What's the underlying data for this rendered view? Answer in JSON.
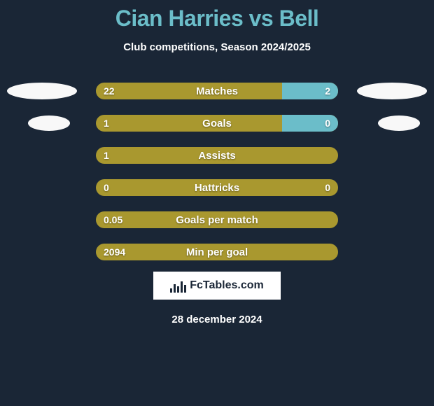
{
  "title": "Cian Harries vs Bell",
  "subtitle": "Club competitions, Season 2024/2025",
  "colors": {
    "background": "#1a2636",
    "title": "#6bbdc9",
    "bar_base": "#a9982f",
    "bar_accent": "#6bbdc9",
    "text": "#ffffff",
    "marker": "#f8f8f8",
    "brand_bg": "#ffffff",
    "brand_text": "#1a2636"
  },
  "rows": [
    {
      "label": "Matches",
      "left_value": "22",
      "right_value": "2",
      "right_color": "#6bbdc9",
      "right_width_pct": 23,
      "show_left_marker": true,
      "show_right_marker": true,
      "left_marker_small": false,
      "right_marker_small": false
    },
    {
      "label": "Goals",
      "left_value": "1",
      "right_value": "0",
      "right_color": "#6bbdc9",
      "right_width_pct": 23,
      "show_left_marker": true,
      "show_right_marker": true,
      "left_marker_small": true,
      "right_marker_small": true
    },
    {
      "label": "Assists",
      "left_value": "1",
      "right_value": "",
      "right_color": "#a9982f",
      "right_width_pct": 0,
      "show_left_marker": false,
      "show_right_marker": false
    },
    {
      "label": "Hattricks",
      "left_value": "0",
      "right_value": "0",
      "right_color": "#a9982f",
      "right_width_pct": 0,
      "show_left_marker": false,
      "show_right_marker": false
    },
    {
      "label": "Goals per match",
      "left_value": "0.05",
      "right_value": "",
      "right_color": "#a9982f",
      "right_width_pct": 0,
      "show_left_marker": false,
      "show_right_marker": false
    },
    {
      "label": "Min per goal",
      "left_value": "2094",
      "right_value": "",
      "right_color": "#a9982f",
      "right_width_pct": 0,
      "show_left_marker": false,
      "show_right_marker": false
    }
  ],
  "brand": "FcTables.com",
  "date": "28 december 2024"
}
